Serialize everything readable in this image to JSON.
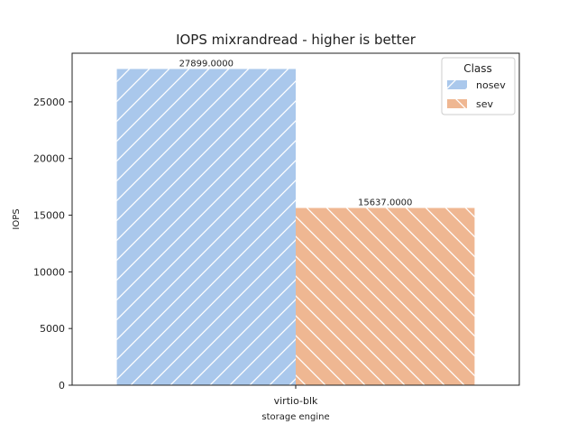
{
  "chart_data": {
    "type": "bar",
    "title": "IOPS mixrandread - higher is better",
    "xlabel": "storage engine",
    "ylabel": "IOPS",
    "categories": [
      "virtio-blk"
    ],
    "series": [
      {
        "name": "nosev",
        "values": [
          27899.0
        ],
        "value_labels": [
          "27899.0000"
        ],
        "color": "#aac8ec",
        "hatch": "forward-diagonal"
      },
      {
        "name": "sev",
        "values": [
          15637.0
        ],
        "value_labels": [
          "15637.0000"
        ],
        "color": "#efb792",
        "hatch": "back-diagonal"
      }
    ],
    "ylim": [
      0,
      29290
    ],
    "yticks": [
      0,
      5000,
      10000,
      15000,
      20000,
      25000
    ],
    "ytick_labels": [
      "0",
      "5000",
      "10000",
      "15000",
      "20000",
      "25000"
    ],
    "grid": false,
    "legend": {
      "title": "Class",
      "placement": "top-right"
    }
  }
}
